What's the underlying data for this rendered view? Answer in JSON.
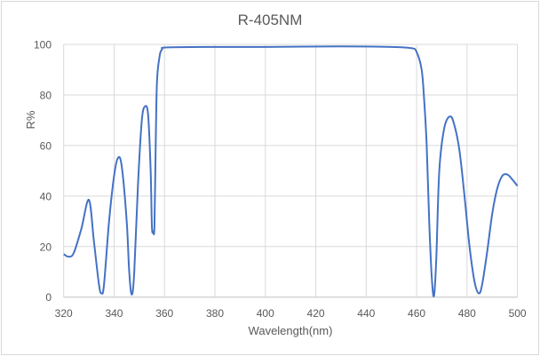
{
  "chart_data": {
    "type": "line",
    "title": "R-405NM",
    "xlabel": "Wavelength(nm)",
    "ylabel": "R%",
    "xlim": [
      320,
      500
    ],
    "ylim": [
      0,
      100
    ],
    "xticks": [
      320,
      340,
      360,
      380,
      400,
      420,
      440,
      460,
      480,
      500
    ],
    "yticks": [
      0,
      20,
      40,
      60,
      80,
      100
    ],
    "grid": true,
    "series_color": "#4472C4",
    "series": [
      {
        "name": "R%",
        "x": [
          320,
          322,
          324,
          327,
          330,
          332,
          334,
          335,
          336,
          338,
          340,
          341.5,
          343,
          345,
          346,
          347,
          348,
          349.5,
          351,
          352.3,
          353.5,
          354.5,
          355,
          355.5,
          356,
          356.5,
          357,
          358,
          359,
          361,
          380,
          400,
          430,
          450,
          458,
          460,
          462,
          463,
          464,
          465,
          466,
          466.9,
          467.8,
          469,
          471,
          473.3,
          475,
          477,
          479,
          481,
          483,
          484.7,
          486,
          488,
          490,
          492,
          494,
          496,
          498,
          500
        ],
        "y": [
          17,
          16,
          17.5,
          27,
          38.5,
          22,
          5,
          1.5,
          5,
          30,
          48,
          55,
          52,
          30,
          10,
          1,
          10,
          45,
          70,
          75.5,
          72,
          50,
          28,
          26,
          28,
          60,
          85,
          95,
          98,
          98.8,
          99,
          99,
          99.2,
          99,
          98.5,
          97,
          90,
          78,
          60,
          30,
          8,
          0.5,
          15,
          50,
          67,
          71.5,
          68,
          58,
          40,
          20,
          6,
          1.5,
          5,
          18,
          33,
          43,
          48,
          48.5,
          46.5,
          44
        ]
      }
    ]
  }
}
